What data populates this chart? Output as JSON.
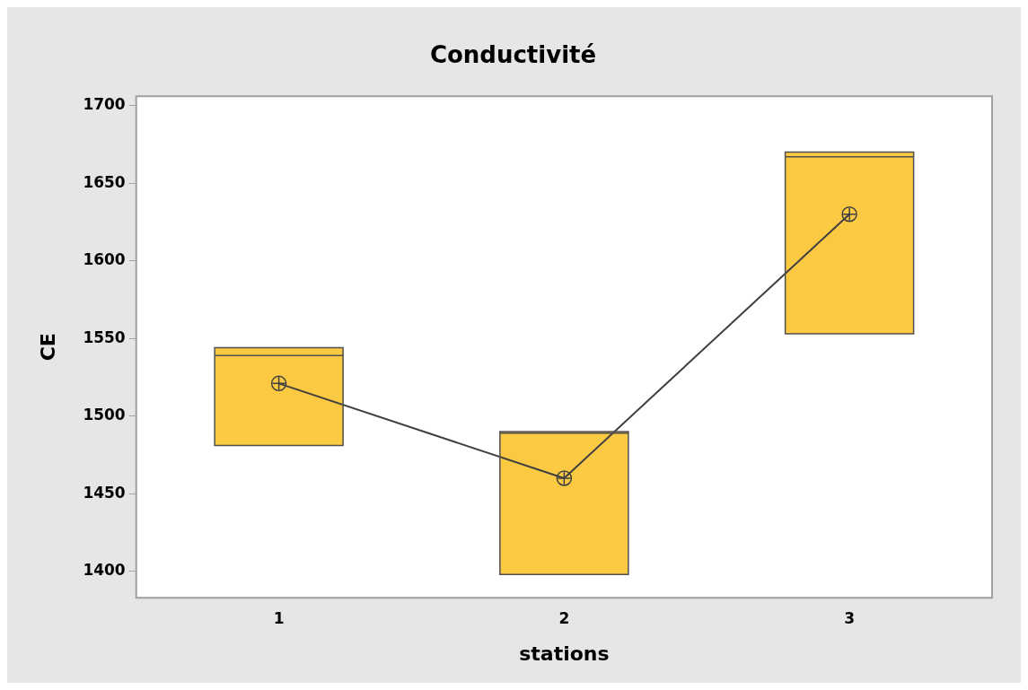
{
  "chart_data": {
    "type": "box",
    "title": "Conductivité",
    "xlabel": "stations",
    "ylabel": "CE",
    "categories": [
      "1",
      "2",
      "3"
    ],
    "ylim": [
      1383,
      1706
    ],
    "yticks": [
      1400,
      1450,
      1500,
      1550,
      1600,
      1650,
      1700
    ],
    "grid": false,
    "legend": false,
    "series": [
      {
        "type": "box",
        "color": "#fcc943",
        "boxes": [
          {
            "low": 1481,
            "q1": 1481,
            "median": 1539,
            "q3": 1544,
            "high": 1544
          },
          {
            "low": 1398,
            "q1": 1398,
            "median": 1489,
            "q3": 1490,
            "high": 1490
          },
          {
            "low": 1553,
            "q1": 1553,
            "median": 1667,
            "q3": 1670,
            "high": 1670
          }
        ]
      },
      {
        "type": "line",
        "color": "#404040",
        "marker": "circle",
        "values": [
          1521,
          1460,
          1630
        ]
      }
    ]
  }
}
